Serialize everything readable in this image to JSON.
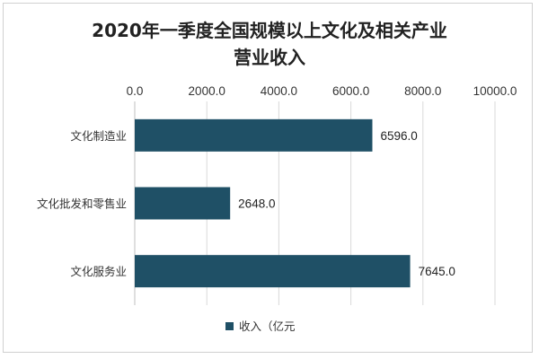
{
  "chart_data": {
    "type": "bar",
    "orientation": "horizontal",
    "title_lines": [
      "2020年一季度全国规模以上文化及相关产业",
      "营业收入"
    ],
    "categories": [
      "文化制造业",
      "文化批发和零售业",
      "文化服务业"
    ],
    "series": [
      {
        "name": "收入（亿元",
        "color": "#1f5066",
        "values": [
          6596.0,
          2648.0,
          7645.0
        ],
        "value_labels": [
          "6596.0",
          "2648.0",
          "7645.0"
        ]
      }
    ],
    "xlim": [
      0,
      10000
    ],
    "x_ticks": [
      0,
      2000,
      4000,
      6000,
      8000,
      10000
    ],
    "x_tick_labels": [
      "0.0",
      "2000.0",
      "4000.0",
      "6000.0",
      "8000.0",
      "10000.0"
    ],
    "x_axis_position": "top",
    "grid": true,
    "legend_position": "bottom"
  }
}
